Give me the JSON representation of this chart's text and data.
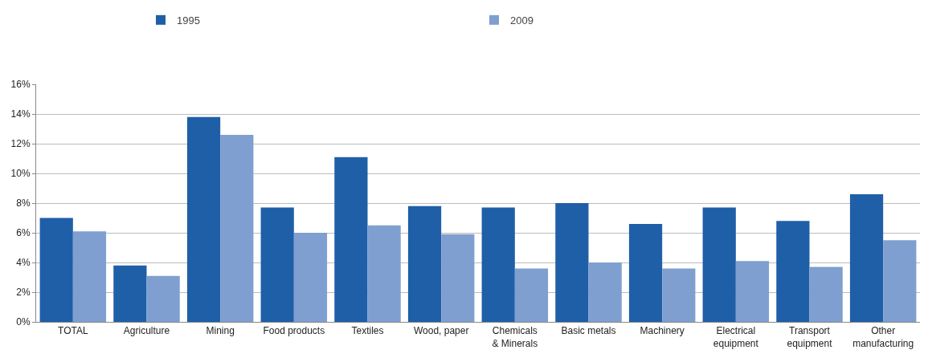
{
  "chart_data": {
    "type": "bar",
    "categories": [
      "TOTAL",
      "Agriculture",
      "Mining",
      "Food products",
      "Textiles",
      "Wood, paper",
      "Chemicals & Minerals",
      "Basic metals",
      "Machinery",
      "Electrical equipment",
      "Transport equipment",
      "Other manufacturing"
    ],
    "series": [
      {
        "name": "1995",
        "color": "#1f5fa8",
        "values": [
          7.0,
          3.8,
          13.8,
          7.7,
          11.1,
          7.8,
          7.7,
          8.0,
          6.6,
          7.7,
          6.8,
          8.6
        ]
      },
      {
        "name": "2009",
        "color": "#7f9fd0",
        "values": [
          6.1,
          3.1,
          12.6,
          6.0,
          6.5,
          5.9,
          3.6,
          4.0,
          3.6,
          4.1,
          3.7,
          5.5
        ]
      }
    ],
    "ylim": [
      0,
      16
    ],
    "yticks": [
      {
        "value": 0,
        "label": "0%"
      },
      {
        "value": 2,
        "label": "2%"
      },
      {
        "value": 4,
        "label": "4%"
      },
      {
        "value": 6,
        "label": "6%"
      },
      {
        "value": 8,
        "label": "8%"
      },
      {
        "value": 10,
        "label": "10%"
      },
      {
        "value": 12,
        "label": "12%"
      },
      {
        "value": 14,
        "label": "14%"
      },
      {
        "value": 16,
        "label": "16%"
      }
    ],
    "grid": "y",
    "legend": "top"
  }
}
